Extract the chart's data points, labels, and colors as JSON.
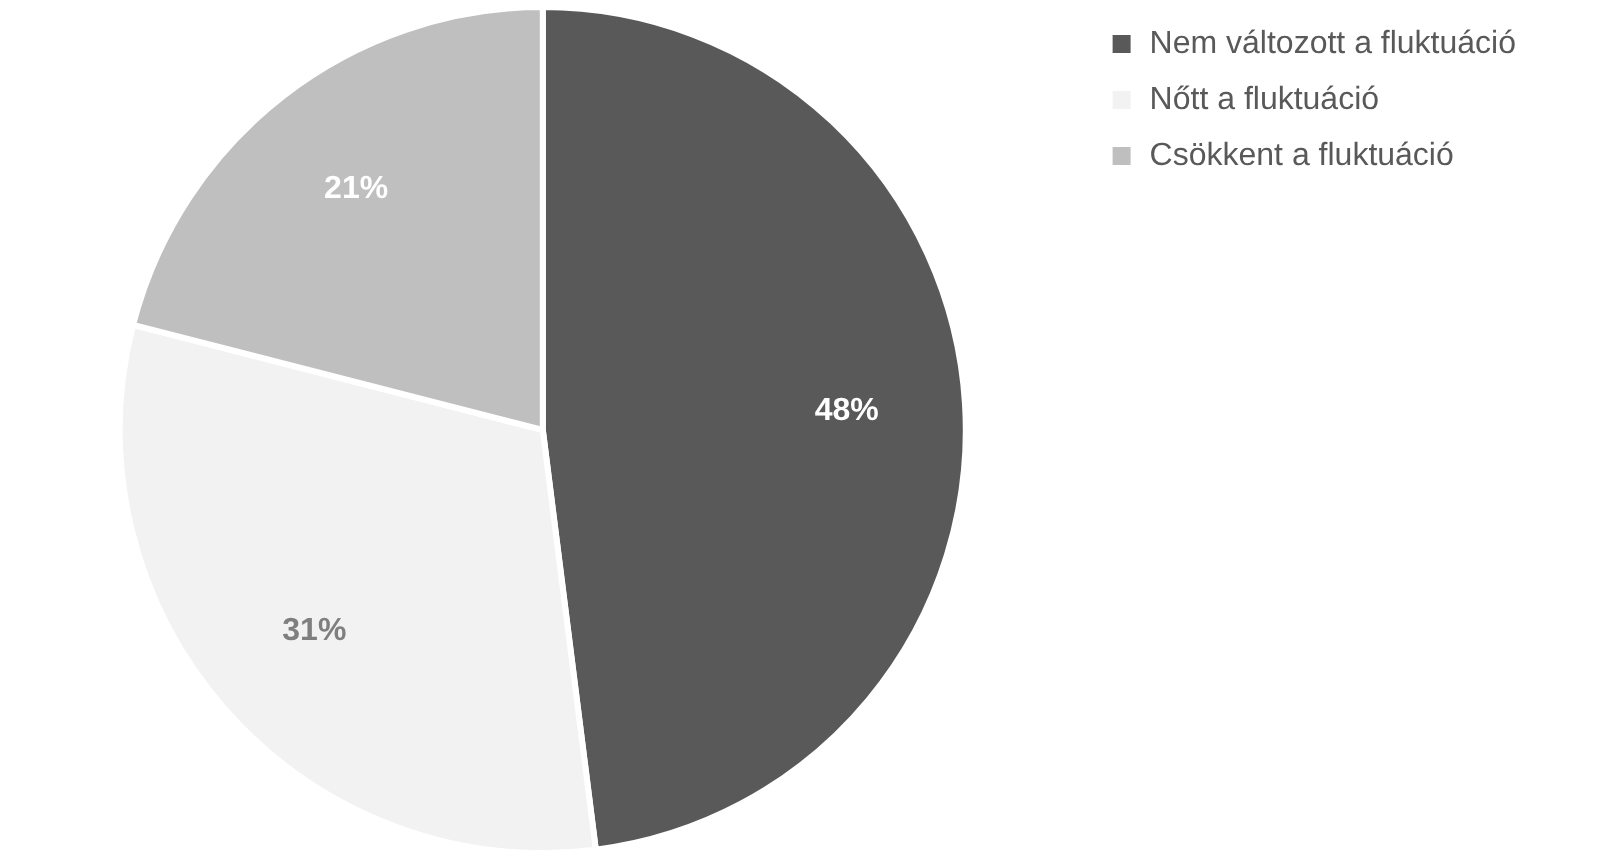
{
  "chart_data": {
    "type": "pie",
    "categories": [
      "Nem változott a fluktuáció",
      "Nőtt a fluktuáció",
      "Csökkent a fluktuáció"
    ],
    "values": [
      48,
      31,
      21
    ],
    "colors": [
      "#595959",
      "#f2f2f2",
      "#bfbfbf"
    ],
    "value_labels": [
      "48%",
      "31%",
      "21%"
    ],
    "legend": "top right"
  }
}
